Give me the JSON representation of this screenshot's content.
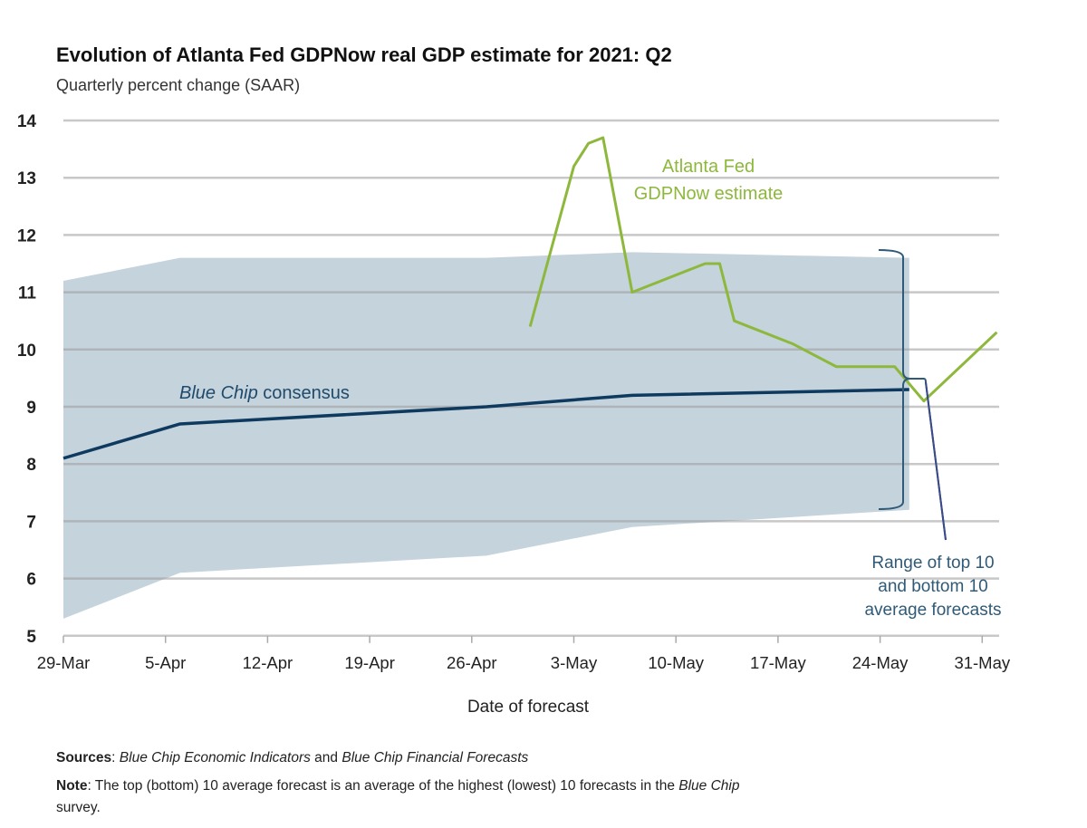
{
  "chart_data": {
    "type": "line",
    "title": "Evolution of Atlanta Fed GDPNow real GDP estimate for 2021: Q2",
    "subtitle": "Quarterly percent change (SAAR)",
    "xlabel": "Date of forecast",
    "ylabel": "",
    "x_start": "2021-03-29",
    "xlim": [
      "2021-03-29",
      "2021-06-01"
    ],
    "ylim": [
      5,
      14
    ],
    "y_ticks": [
      "5",
      "6",
      "7",
      "8",
      "9",
      "10",
      "11",
      "12",
      "13",
      "14"
    ],
    "x_ticks": [
      "29-Mar",
      "5-Apr",
      "12-Apr",
      "19-Apr",
      "26-Apr",
      "3-May",
      "10-May",
      "17-May",
      "24-May",
      "31-May"
    ],
    "grid": true,
    "series": [
      {
        "name": "Atlanta Fed GDPNow estimate",
        "label_lines": [
          "Atlanta Fed",
          "GDPNow estimate"
        ],
        "color": "#8db83c",
        "x": [
          "2021-04-30",
          "2021-05-03",
          "2021-05-04",
          "2021-05-05",
          "2021-05-07",
          "2021-05-12",
          "2021-05-13",
          "2021-05-14",
          "2021-05-18",
          "2021-05-21",
          "2021-05-25",
          "2021-05-27",
          "2021-06-01"
        ],
        "y": [
          10.4,
          13.2,
          13.6,
          13.7,
          11.0,
          11.5,
          11.5,
          10.5,
          10.1,
          9.7,
          9.7,
          9.1,
          10.3
        ]
      },
      {
        "name": "Blue Chip consensus",
        "label_italic": "Blue Chip",
        "label_rest": " consensus",
        "color": "#0f3a5f",
        "x": [
          "2021-03-29",
          "2021-04-06",
          "2021-04-27",
          "2021-05-07",
          "2021-05-26"
        ],
        "y": [
          8.1,
          8.7,
          9.0,
          9.2,
          9.3
        ]
      }
    ],
    "band": {
      "label_lines": [
        "Range of top 10",
        "and bottom 10",
        "average forecasts"
      ],
      "color": "#c5d3dc",
      "x": [
        "2021-03-29",
        "2021-04-06",
        "2021-04-27",
        "2021-05-07",
        "2021-05-26"
      ],
      "top": [
        11.2,
        11.6,
        11.6,
        11.7,
        11.6
      ],
      "bottom": [
        5.3,
        6.1,
        6.4,
        6.9,
        7.2
      ]
    }
  },
  "footer": {
    "sources_label": "Sources",
    "sources_italic_1": "Blue Chip Economic Indicators",
    "sources_mid": " and ",
    "sources_italic_2": "Blue Chip Financial Forecasts",
    "note_label": "Note",
    "note_text": ": The top (bottom) 10 average forecast is an average of the highest (lowest) 10 forecasts in the ",
    "note_italic": "Blue Chip",
    "note_end": "survey."
  }
}
